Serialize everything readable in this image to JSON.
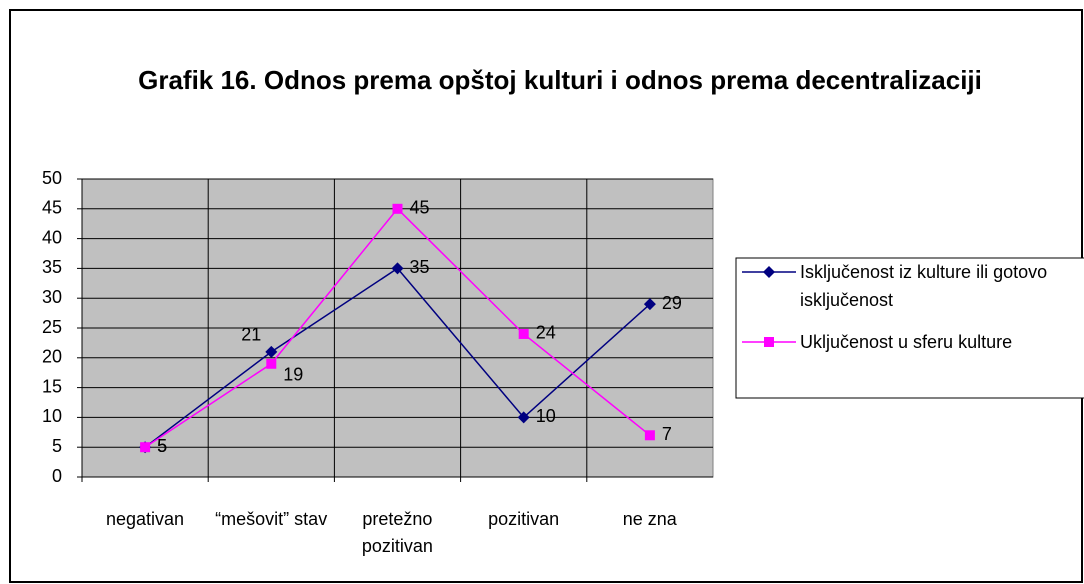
{
  "chart_data": {
    "type": "line",
    "title": "Grafik 16. Odnos prema opštoj kulturi i odnos prema decentralizaciji",
    "categories": [
      "negativan",
      "“mešovit” stav",
      "pretežno pozitivan",
      "pozitivan",
      "ne zna"
    ],
    "series": [
      {
        "name": "Isključenost iz kulture ili gotovo isključenost",
        "color": "#000080",
        "marker": "diamond",
        "values": [
          5,
          21,
          35,
          10,
          29
        ]
      },
      {
        "name": "Uključenost u sferu kulture",
        "color": "#ff00ff",
        "marker": "square",
        "values": [
          5,
          19,
          45,
          24,
          7
        ]
      }
    ],
    "ylim": [
      0,
      50
    ],
    "yticks": [
      0,
      5,
      10,
      15,
      20,
      25,
      30,
      35,
      40,
      45,
      50
    ],
    "grid": true,
    "legend": "right"
  }
}
